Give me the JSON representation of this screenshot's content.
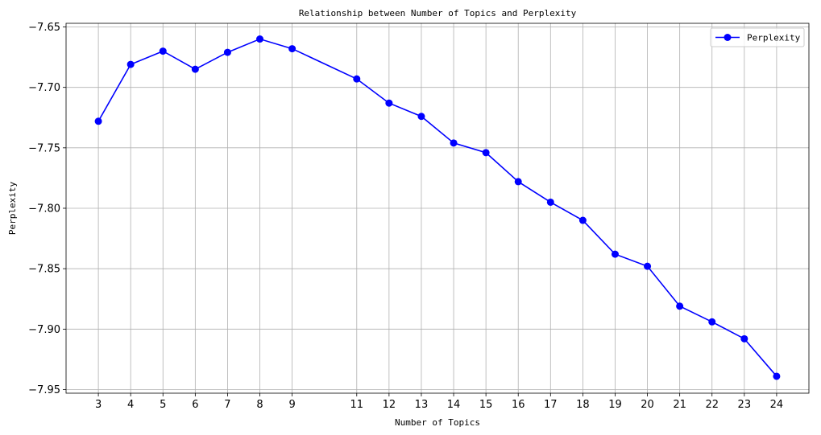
{
  "chart_data": {
    "type": "line",
    "title": "Relationship between Number of Topics and Perplexity",
    "xlabel": "Number of Topics",
    "ylabel": "Perplexity",
    "x": [
      3,
      4,
      5,
      6,
      7,
      8,
      9,
      11,
      12,
      13,
      14,
      15,
      16,
      17,
      18,
      19,
      20,
      21,
      22,
      23,
      24
    ],
    "x_ticks": [
      "3",
      "4",
      "5",
      "6",
      "7",
      "8",
      "9",
      "11",
      "12",
      "13",
      "14",
      "15",
      "16",
      "17",
      "18",
      "19",
      "20",
      "21",
      "22",
      "23",
      "24"
    ],
    "y_ticks": [
      "−7.65",
      "−7.70",
      "−7.75",
      "−7.80",
      "−7.85",
      "−7.90",
      "−7.95"
    ],
    "y_tick_values": [
      -7.65,
      -7.7,
      -7.75,
      -7.8,
      -7.85,
      -7.9,
      -7.95
    ],
    "ylim": [
      -7.953,
      -7.647
    ],
    "xlim": [
      2.0,
      25.0
    ],
    "series": [
      {
        "name": "Perplexity",
        "color": "#0000ff",
        "marker": "circle",
        "values": [
          -7.728,
          -7.681,
          -7.67,
          -7.685,
          -7.671,
          -7.66,
          -7.668,
          -7.693,
          -7.713,
          -7.724,
          -7.746,
          -7.754,
          -7.778,
          -7.795,
          -7.81,
          -7.838,
          -7.848,
          -7.881,
          -7.894,
          -7.908,
          -7.939
        ]
      }
    ],
    "grid": true,
    "legend_position": "top-right"
  }
}
